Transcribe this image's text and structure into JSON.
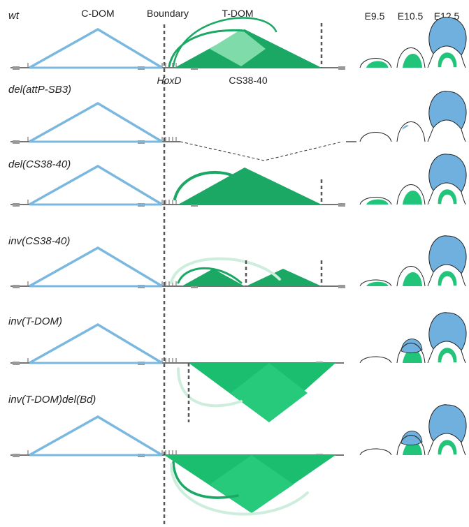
{
  "header": {
    "c_dom": "C-DOM",
    "boundary": "Boundary",
    "t_dom": "T-DOM",
    "hoxd": "HoxD",
    "cs38_40": "CS38-40",
    "stages": [
      "E9.5",
      "E10.5",
      "E12.5"
    ]
  },
  "rows": [
    "wt",
    "del(attP-SB3)",
    "del(CS38-40)",
    "inv(CS38-40)",
    "inv(T-DOM)",
    "inv(T-DOM)del(Bd)"
  ]
}
